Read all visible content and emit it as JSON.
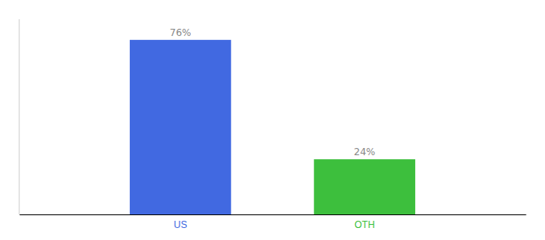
{
  "chart_data": {
    "type": "bar",
    "categories": [
      "US",
      "OTH"
    ],
    "values": [
      76,
      24
    ],
    "value_labels": [
      "76%",
      "24%"
    ],
    "colors": [
      "#4169e1",
      "#3dbf3d"
    ],
    "ylim": [
      0,
      85
    ],
    "data_labels": true,
    "tick_labels": "x"
  }
}
